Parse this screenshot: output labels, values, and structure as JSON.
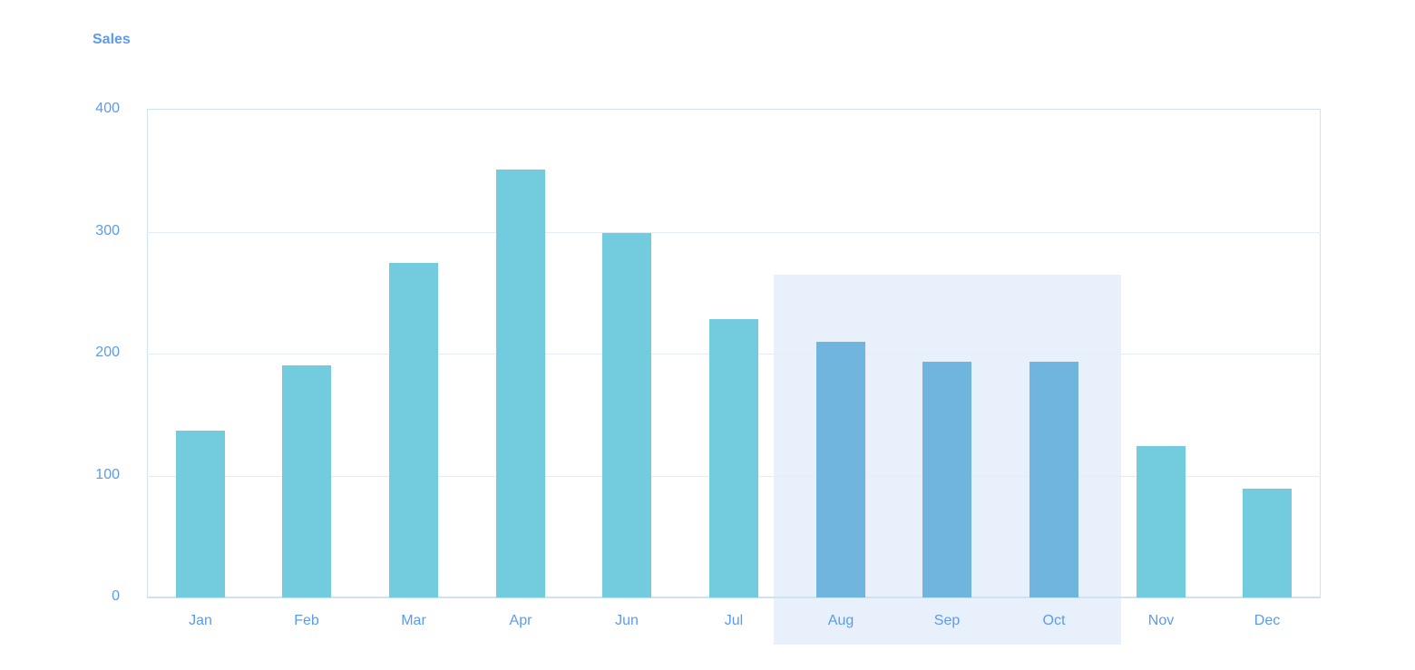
{
  "chart_data": {
    "type": "bar",
    "title": "Sales",
    "xlabel": "",
    "ylabel": "Sales",
    "ylim": [
      0,
      400
    ],
    "yticks": [
      0,
      100,
      200,
      300,
      400
    ],
    "grid": true,
    "legend": null,
    "categories": [
      "Jan",
      "Feb",
      "Mar",
      "Apr",
      "Jun",
      "Jul",
      "Aug",
      "Sep",
      "Oct",
      "Nov",
      "Dec"
    ],
    "values": [
      137,
      190,
      274,
      351,
      299,
      228,
      210,
      193,
      193,
      124,
      89
    ],
    "highlighted_range": [
      "Aug",
      "Oct"
    ],
    "colors": {
      "bar": "#72ccdd",
      "bar_highlighted": "#70b5dd",
      "highlight_band": "#e8f0fc",
      "text": "#5b9bef",
      "gridline": "#e2edf8",
      "axis": "#cfe2ef"
    }
  },
  "header": {
    "title": "Sales"
  },
  "yaxis": {
    "labels": [
      "400",
      "300",
      "200",
      "100",
      "0"
    ]
  }
}
